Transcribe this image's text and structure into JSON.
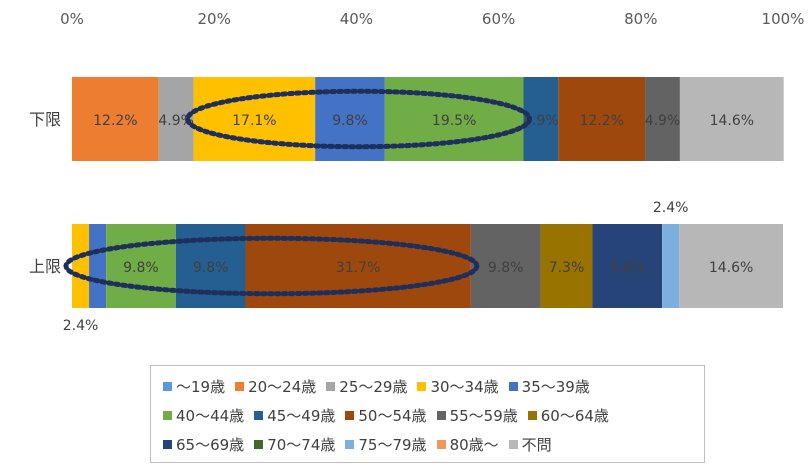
{
  "chart_data": {
    "type": "bar",
    "orientation": "horizontal",
    "stacked": true,
    "title": "",
    "x_axis": {
      "min": 0,
      "max": 100,
      "unit": "%",
      "ticks": [
        "0%",
        "20%",
        "40%",
        "60%",
        "80%",
        "100%"
      ],
      "position": "top"
    },
    "categories": [
      "下限",
      "上限"
    ],
    "series": [
      {
        "name": "～19歳",
        "color": "#5b9bd5",
        "values": [
          0.0,
          0.0
        ]
      },
      {
        "name": "20～24歳",
        "color": "#ed7d31",
        "values": [
          12.2,
          0.0
        ]
      },
      {
        "name": "25～29歳",
        "color": "#a5a5a5",
        "values": [
          4.9,
          0.0
        ]
      },
      {
        "name": "30～34歳",
        "color": "#ffc000",
        "values": [
          17.1,
          2.4
        ]
      },
      {
        "name": "35～39歳",
        "color": "#4472c4",
        "values": [
          9.8,
          2.4
        ]
      },
      {
        "name": "40～44歳",
        "color": "#70ad47",
        "values": [
          19.5,
          9.8
        ]
      },
      {
        "name": "45～49歳",
        "color": "#255e91",
        "values": [
          4.9,
          9.8
        ]
      },
      {
        "name": "50～54歳",
        "color": "#9e480e",
        "values": [
          12.2,
          31.7
        ]
      },
      {
        "name": "55～59歳",
        "color": "#636363",
        "values": [
          4.9,
          9.8
        ]
      },
      {
        "name": "60～64歳",
        "color": "#997300",
        "values": [
          0.0,
          7.3
        ]
      },
      {
        "name": "65～69歳",
        "color": "#264478",
        "values": [
          0.0,
          9.8
        ]
      },
      {
        "name": "70～74歳",
        "color": "#43682b",
        "values": [
          0.0,
          0.0
        ]
      },
      {
        "name": "75～79歳",
        "color": "#7cafdd",
        "values": [
          0.0,
          2.4
        ]
      },
      {
        "name": "80歳～",
        "color": "#f1975a",
        "values": [
          0.0,
          0.0
        ]
      },
      {
        "name": "不問",
        "color": "#b7b7b7",
        "values": [
          14.6,
          14.6
        ]
      }
    ],
    "data_labels": [
      [
        "",
        "12.2%",
        "4.9%",
        "17.1%",
        "9.8%",
        "19.5%",
        "4.9%",
        "12.2%",
        "4.9%",
        "",
        "",
        "",
        "",
        "",
        "14.6%"
      ],
      [
        "",
        "",
        "",
        "2.4%",
        "",
        "9.8%",
        "9.8%",
        "31.7%",
        "9.8%",
        "7.3%",
        "9.8%",
        "",
        "2.4%",
        "",
        "14.6%"
      ]
    ],
    "annotations": [
      {
        "category": "下限",
        "type": "dotted-ellipse",
        "series_range": [
          "30～34歳",
          "40～44歳"
        ]
      },
      {
        "category": "上限",
        "type": "dotted-ellipse",
        "series_range": [
          "30～34歳",
          "50～54歳"
        ]
      }
    ],
    "legend_position": "bottom",
    "grid": false
  }
}
